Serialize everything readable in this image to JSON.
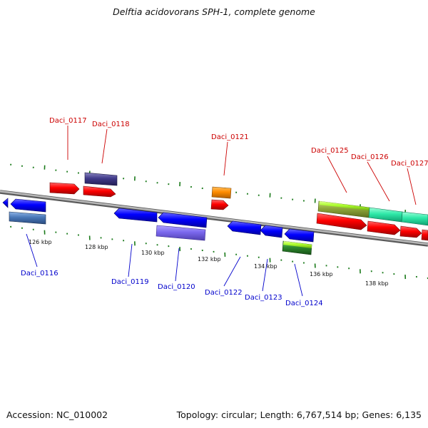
{
  "title": "Delftia acidovorans SPH-1, complete genome",
  "footer": {
    "accession": "Accession: NC_010002",
    "topology": "Topology: circular; Length: 6,767,514 bp; Genes: 6,135"
  },
  "scale_labels": [
    "126 kbp",
    "128 kbp",
    "130 kbp",
    "132 kbp",
    "134 kbp",
    "136 kbp",
    "138 kbp"
  ],
  "gene_labels": {
    "Daci_0116": "Daci_0116",
    "Daci_0117": "Daci_0117",
    "Daci_0118": "Daci_0118",
    "Daci_0119": "Daci_0119",
    "Daci_0120": "Daci_0120",
    "Daci_0121": "Daci_0121",
    "Daci_0122": "Daci_0122",
    "Daci_0123": "Daci_0123",
    "Daci_0124": "Daci_0124",
    "Daci_0125": "Daci_0125",
    "Daci_0126": "Daci_0126",
    "Daci_0127": "Daci_0127"
  },
  "colors": {
    "forward_label": "#cc0000",
    "reverse_label": "#0000cc",
    "backbone": "#8c8c8c",
    "tick": "#1a7a1a",
    "red": "#ff0000",
    "blue": "#0000ff",
    "navy_purple": "#403a8a",
    "lavender": "#7b68ee",
    "steel_blue": "#4a78b8",
    "orange": "#ff8c00",
    "olive": "#8fa83a",
    "lime": "#adff2f",
    "green": "#2e8b2e",
    "aquamarine": "#2ee8a8"
  }
}
